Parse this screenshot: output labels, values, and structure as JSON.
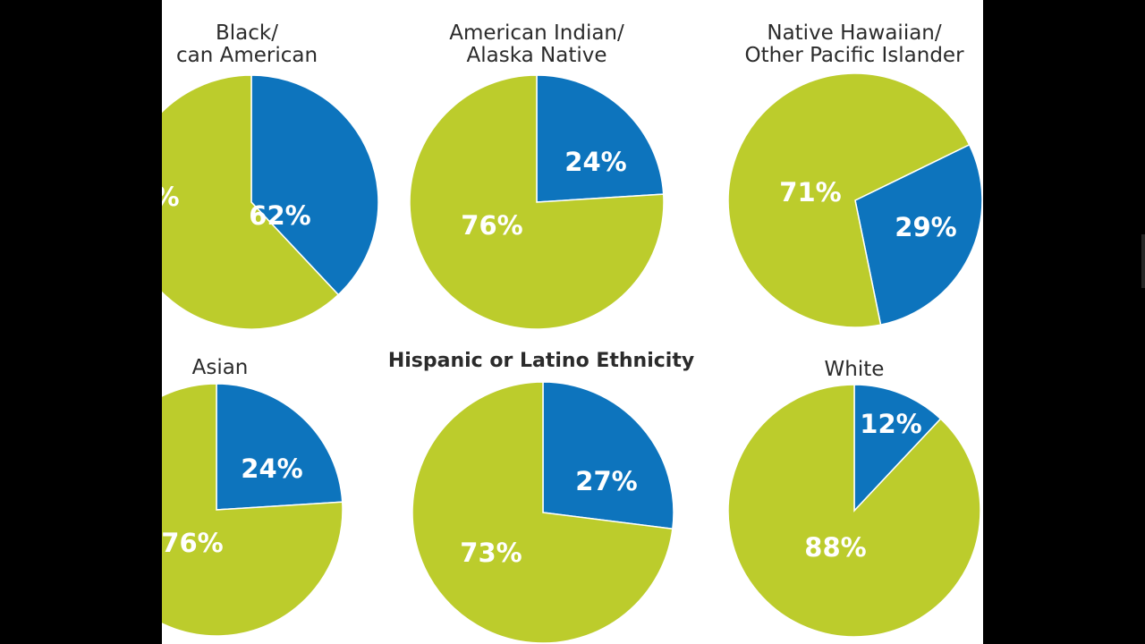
{
  "chart_data": [
    {
      "type": "pie",
      "title_lines": [
        "Black/",
        "can American"
      ],
      "slices": [
        {
          "label": "%",
          "value": 38,
          "color": "#0d74bd"
        },
        {
          "label": "62%",
          "value": 62,
          "color": "#bccc2c"
        }
      ]
    },
    {
      "type": "pie",
      "title_lines": [
        "American Indian/",
        "Alaska Native"
      ],
      "slices": [
        {
          "label": "24%",
          "value": 24,
          "color": "#0d74bd"
        },
        {
          "label": "76%",
          "value": 76,
          "color": "#bccc2c"
        }
      ]
    },
    {
      "type": "pie",
      "title_lines": [
        "Native Hawaiian/",
        "Other Pacific Islander"
      ],
      "slices": [
        {
          "label": "29%",
          "value": 29,
          "color": "#0d74bd",
          "start_deg": 64
        },
        {
          "label": "71%",
          "value": 71,
          "color": "#bccc2c"
        }
      ]
    },
    {
      "type": "pie",
      "title_lines": [
        "Asian"
      ],
      "slices": [
        {
          "label": "24%",
          "value": 24,
          "color": "#0d74bd"
        },
        {
          "label": "76%",
          "value": 76,
          "color": "#bccc2c"
        }
      ]
    },
    {
      "type": "pie",
      "title_lines": [
        "Hispanic or Latino Ethnicity"
      ],
      "title_bold": true,
      "slices": [
        {
          "label": "27%",
          "value": 27,
          "color": "#0d74bd"
        },
        {
          "label": "73%",
          "value": 73,
          "color": "#bccc2c"
        }
      ]
    },
    {
      "type": "pie",
      "title_lines": [
        "White"
      ],
      "slices": [
        {
          "label": "12%",
          "value": 12,
          "color": "#0d74bd"
        },
        {
          "label": "88%",
          "value": 88,
          "color": "#bccc2c"
        }
      ]
    }
  ]
}
